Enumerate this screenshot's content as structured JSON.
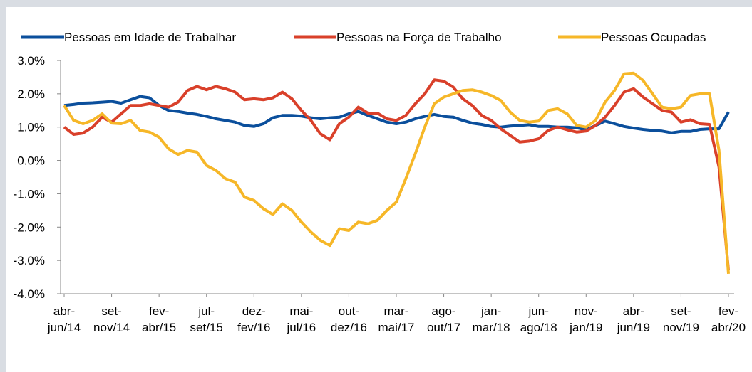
{
  "chart_data": {
    "type": "line",
    "categories": [
      "abr-jun/14",
      null,
      null,
      null,
      null,
      "set-nov/14",
      null,
      null,
      null,
      null,
      "fev-abr/15",
      null,
      null,
      null,
      null,
      "jul-set/15",
      null,
      null,
      null,
      null,
      "dez-fev/16",
      null,
      null,
      null,
      null,
      "mai-jul/16",
      null,
      null,
      null,
      null,
      "out-dez/16",
      null,
      null,
      null,
      null,
      "mar-mai/17",
      null,
      null,
      null,
      null,
      "ago-out/17",
      null,
      null,
      null,
      null,
      "jan-mar/18",
      null,
      null,
      null,
      null,
      "jun-ago/18",
      null,
      null,
      null,
      null,
      "nov-jan/19",
      null,
      null,
      null,
      null,
      "abr-jun/19",
      null,
      null,
      null,
      null,
      "set-nov/19",
      null,
      null,
      null,
      null,
      "fev-abr/20"
    ],
    "series": [
      {
        "name": "Pessoas em Idade de Trabalhar",
        "color": "#0b4f9c",
        "values": [
          1.65,
          1.68,
          1.72,
          1.73,
          1.75,
          1.77,
          1.72,
          1.82,
          1.92,
          1.88,
          1.65,
          1.5,
          1.47,
          1.42,
          1.38,
          1.32,
          1.25,
          1.2,
          1.15,
          1.05,
          1.02,
          1.1,
          1.28,
          1.35,
          1.35,
          1.33,
          1.28,
          1.25,
          1.28,
          1.3,
          1.4,
          1.47,
          1.35,
          1.25,
          1.15,
          1.1,
          1.15,
          1.25,
          1.32,
          1.38,
          1.32,
          1.3,
          1.2,
          1.12,
          1.08,
          1.02,
          1.0,
          1.03,
          1.05,
          1.07,
          1.02,
          1.02,
          1.0,
          1.0,
          0.98,
          0.92,
          1.05,
          1.18,
          1.1,
          1.02,
          0.97,
          0.93,
          0.9,
          0.88,
          0.83,
          0.87,
          0.87,
          0.93,
          0.95,
          0.95,
          1.45
        ]
      },
      {
        "name": "Pessoas na Força de Trabalho",
        "color": "#d9402a",
        "values": [
          1.0,
          0.78,
          0.82,
          1.0,
          1.3,
          1.15,
          1.4,
          1.65,
          1.65,
          1.7,
          1.65,
          1.6,
          1.75,
          2.1,
          2.22,
          2.12,
          2.22,
          2.15,
          2.05,
          1.82,
          1.85,
          1.82,
          1.88,
          2.05,
          1.85,
          1.5,
          1.2,
          0.8,
          0.62,
          1.1,
          1.3,
          1.6,
          1.42,
          1.42,
          1.25,
          1.2,
          1.35,
          1.7,
          2.0,
          2.42,
          2.38,
          2.2,
          1.85,
          1.65,
          1.35,
          1.2,
          0.95,
          0.75,
          0.55,
          0.58,
          0.65,
          0.9,
          1.0,
          0.92,
          0.85,
          0.88,
          1.05,
          1.3,
          1.65,
          2.05,
          2.15,
          1.9,
          1.7,
          1.5,
          1.45,
          1.15,
          1.22,
          1.1,
          1.08,
          -0.2,
          -3.3
        ]
      },
      {
        "name": "Pessoas Ocupadas",
        "color": "#f6b728",
        "values": [
          1.65,
          1.2,
          1.1,
          1.2,
          1.4,
          1.12,
          1.1,
          1.2,
          0.9,
          0.85,
          0.7,
          0.35,
          0.18,
          0.3,
          0.25,
          -0.15,
          -0.3,
          -0.55,
          -0.65,
          -1.1,
          -1.2,
          -1.45,
          -1.62,
          -1.3,
          -1.5,
          -1.85,
          -2.15,
          -2.4,
          -2.55,
          -2.05,
          -2.1,
          -1.85,
          -1.9,
          -1.8,
          -1.5,
          -1.25,
          -0.55,
          0.2,
          1.0,
          1.7,
          1.9,
          2.0,
          2.1,
          2.12,
          2.05,
          1.95,
          1.8,
          1.45,
          1.2,
          1.15,
          1.18,
          1.5,
          1.55,
          1.4,
          1.05,
          1.0,
          1.2,
          1.75,
          2.1,
          2.6,
          2.62,
          2.4,
          2.0,
          1.6,
          1.55,
          1.6,
          1.95,
          2.0,
          2.0,
          0.3,
          -3.4
        ]
      }
    ],
    "ylim": [
      -4,
      3
    ],
    "yticks": [
      {
        "value": -4,
        "label": "-4.0%"
      },
      {
        "value": -3,
        "label": "-3.0%"
      },
      {
        "value": -2,
        "label": "-2.0%"
      },
      {
        "value": -1,
        "label": "-1.0%"
      },
      {
        "value": 0,
        "label": "0.0%"
      },
      {
        "value": 1,
        "label": "1.0%"
      },
      {
        "value": 2,
        "label": "2.0%"
      },
      {
        "value": 3,
        "label": "3.0%"
      }
    ],
    "grid": false,
    "legend": "top"
  }
}
